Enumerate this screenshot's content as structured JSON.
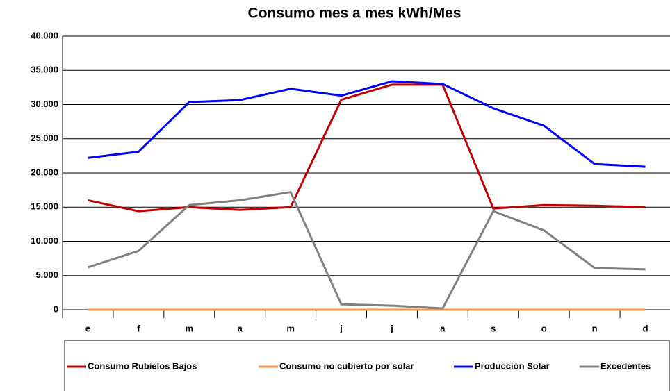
{
  "chart_data": {
    "type": "line",
    "title": "Consumo mes a mes kWh/Mes",
    "categories": [
      "e",
      "f",
      "m",
      "a",
      "m",
      "j",
      "j",
      "a",
      "s",
      "o",
      "n",
      "d"
    ],
    "series": [
      {
        "name": "Consumo Rubielos Bajos",
        "color": "#c00000",
        "values": [
          16000,
          14400,
          15000,
          14600,
          15000,
          30700,
          32900,
          32900,
          14800,
          15300,
          15200,
          15000
        ]
      },
      {
        "name": "Consumo no cubierto por solar",
        "color": "#f79646",
        "values": [
          0,
          0,
          0,
          0,
          0,
          0,
          0,
          0,
          0,
          0,
          0,
          0
        ]
      },
      {
        "name": "Producción Solar",
        "color": "#0000ff",
        "values": [
          22200,
          23100,
          30350,
          30650,
          32300,
          31300,
          33400,
          33000,
          29450,
          26900,
          21300,
          20900
        ]
      },
      {
        "name": "Excedentes",
        "color": "#808080",
        "values": [
          6200,
          8600,
          15300,
          16000,
          17200,
          800,
          600,
          200,
          14400,
          11600,
          6100,
          5900
        ]
      }
    ],
    "ylim": [
      0,
      40000
    ],
    "yticks": [
      0,
      {
        "value": 5000,
        "label": "5.000"
      },
      {
        "value": 10000,
        "label": "10.000"
      },
      {
        "value": 15000,
        "label": "15.000"
      },
      {
        "value": 20000,
        "label": "20.000"
      },
      {
        "value": 25000,
        "label": "25.000"
      },
      {
        "value": 30000,
        "label": "30.000"
      },
      {
        "value": 35000,
        "label": "35.000"
      },
      {
        "value": 40000,
        "label": "40.000"
      }
    ],
    "grid": true,
    "legend": "bottom"
  }
}
